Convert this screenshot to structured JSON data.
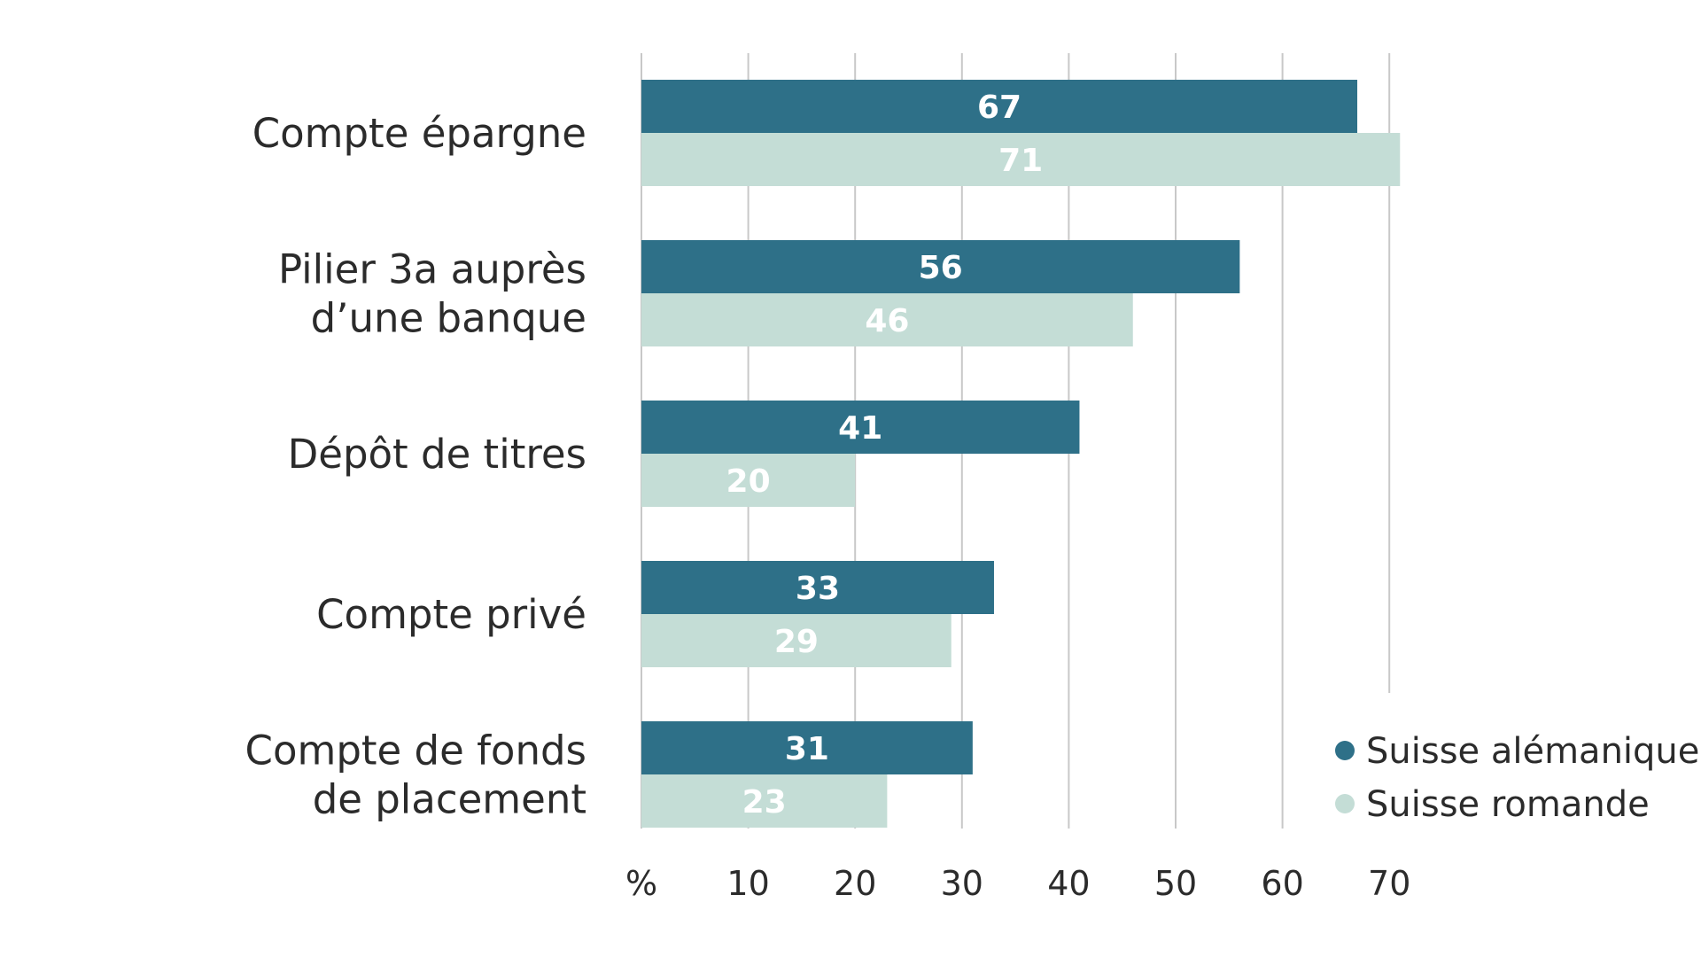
{
  "chart_data": {
    "type": "bar",
    "orientation": "horizontal",
    "categories": [
      [
        "Compte épargne"
      ],
      [
        "Pilier 3a auprès",
        "d’une banque"
      ],
      [
        "Dépôt de titres"
      ],
      [
        "Compte privé"
      ],
      [
        "Compte de fonds",
        "de placement"
      ]
    ],
    "series": [
      {
        "name": "Suisse alémanique",
        "color": "#2e7088",
        "values": [
          67,
          56,
          41,
          33,
          31
        ]
      },
      {
        "name": "Suisse romande",
        "color": "#c4ddd6",
        "values": [
          71,
          46,
          20,
          29,
          23
        ]
      }
    ],
    "x_ticks": [
      "%",
      "10",
      "20",
      "30",
      "40",
      "50",
      "60",
      "70"
    ],
    "xlim": [
      0,
      70
    ],
    "grid": true,
    "legend_position": "bottom-right"
  }
}
